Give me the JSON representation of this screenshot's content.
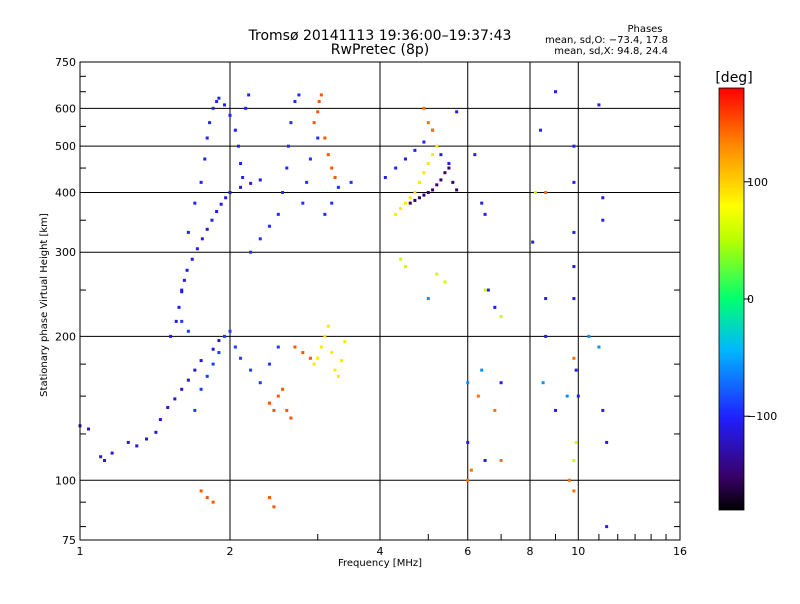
{
  "chart_data": {
    "type": "scatter",
    "title": "Tromsø 20141113 19:36:00–19:37:43",
    "subtitle": "RwPretec (8p)",
    "xlabel": "Frequency [MHz]",
    "ylabel": "Stationary phase Virtual Height [km]",
    "x_scale": "log",
    "y_scale": "log",
    "xlim": [
      1,
      16
    ],
    "ylim": [
      75,
      750
    ],
    "x_ticks": [
      "1",
      "2",
      "4",
      "6",
      "8",
      "10",
      "16"
    ],
    "x_tick_values": [
      1,
      2,
      4,
      6,
      8,
      10,
      16
    ],
    "y_ticks": [
      "75",
      "100",
      "200",
      "300",
      "400",
      "500",
      "600",
      "750"
    ],
    "y_tick_values": [
      75,
      100,
      200,
      300,
      400,
      500,
      600,
      750
    ],
    "grid": true,
    "phase_stats": {
      "heading": "Phases",
      "o_line": "mean, sd,O: −73.4, 17.8",
      "x_line": "mean, sd,X:  94.8, 24.4"
    },
    "colorbar": {
      "unit": "[deg]",
      "ticks": [
        "100",
        "0",
        "−100"
      ],
      "tick_values": [
        100,
        0,
        -100
      ],
      "range": [
        -180,
        180
      ],
      "colormap": "rainbow"
    },
    "clusters": [
      {
        "phase": -115,
        "points": [
          [
            1.0,
            130
          ],
          [
            1.04,
            128
          ],
          [
            1.1,
            112
          ],
          [
            1.12,
            110
          ],
          [
            1.16,
            114
          ],
          [
            1.25,
            120
          ],
          [
            1.3,
            118
          ],
          [
            1.36,
            122
          ],
          [
            1.42,
            126
          ],
          [
            1.45,
            134
          ],
          [
            1.5,
            142
          ],
          [
            1.55,
            148
          ],
          [
            1.6,
            155
          ],
          [
            1.65,
            162
          ],
          [
            1.7,
            170
          ],
          [
            1.75,
            178
          ],
          [
            1.85,
            188
          ],
          [
            1.9,
            196
          ]
        ]
      },
      {
        "phase": -110,
        "points": [
          [
            1.52,
            200
          ],
          [
            1.56,
            215
          ],
          [
            1.58,
            230
          ],
          [
            1.6,
            248
          ],
          [
            1.62,
            262
          ],
          [
            1.64,
            275
          ],
          [
            1.68,
            290
          ],
          [
            1.72,
            305
          ],
          [
            1.76,
            320
          ],
          [
            1.8,
            335
          ],
          [
            1.84,
            350
          ],
          [
            1.88,
            365
          ],
          [
            1.92,
            378
          ],
          [
            1.96,
            390
          ],
          [
            2.0,
            400
          ],
          [
            2.1,
            410
          ],
          [
            2.2,
            418
          ],
          [
            2.3,
            425
          ]
        ]
      },
      {
        "phase": -100,
        "points": [
          [
            1.6,
            250
          ],
          [
            1.65,
            330
          ],
          [
            1.7,
            380
          ],
          [
            1.75,
            420
          ],
          [
            1.78,
            470
          ],
          [
            1.8,
            520
          ],
          [
            1.82,
            560
          ],
          [
            1.85,
            600
          ],
          [
            1.88,
            620
          ],
          [
            1.9,
            630
          ],
          [
            1.95,
            610
          ],
          [
            2.0,
            580
          ],
          [
            2.05,
            540
          ],
          [
            2.08,
            500
          ],
          [
            2.1,
            460
          ],
          [
            2.12,
            430
          ],
          [
            2.15,
            600
          ],
          [
            2.18,
            640
          ]
        ]
      },
      {
        "phase": -95,
        "points": [
          [
            2.2,
            300
          ],
          [
            2.3,
            320
          ],
          [
            2.4,
            340
          ],
          [
            2.5,
            360
          ],
          [
            2.55,
            400
          ],
          [
            2.6,
            450
          ],
          [
            2.62,
            500
          ],
          [
            2.65,
            560
          ],
          [
            2.7,
            620
          ],
          [
            2.75,
            640
          ],
          [
            2.8,
            380
          ],
          [
            2.85,
            420
          ],
          [
            2.9,
            470
          ],
          [
            3.0,
            520
          ],
          [
            3.1,
            360
          ],
          [
            3.2,
            380
          ],
          [
            3.3,
            410
          ],
          [
            3.5,
            420
          ]
        ]
      },
      {
        "phase": -90,
        "points": [
          [
            1.7,
            140
          ],
          [
            1.75,
            155
          ],
          [
            1.8,
            165
          ],
          [
            1.85,
            175
          ],
          [
            1.9,
            185
          ],
          [
            1.95,
            200
          ],
          [
            2.0,
            205
          ],
          [
            2.05,
            190
          ],
          [
            2.1,
            180
          ],
          [
            2.2,
            170
          ],
          [
            2.3,
            160
          ],
          [
            2.4,
            175
          ],
          [
            2.5,
            190
          ],
          [
            1.65,
            205
          ],
          [
            1.6,
            215
          ]
        ]
      },
      {
        "phase": 150,
        "points": [
          [
            2.95,
            560
          ],
          [
            3.0,
            590
          ],
          [
            3.02,
            620
          ],
          [
            3.05,
            640
          ],
          [
            3.1,
            520
          ],
          [
            3.15,
            480
          ],
          [
            3.2,
            450
          ],
          [
            3.25,
            430
          ],
          [
            2.4,
            145
          ],
          [
            2.45,
            140
          ],
          [
            2.5,
            150
          ],
          [
            2.55,
            155
          ],
          [
            2.6,
            140
          ],
          [
            2.65,
            135
          ],
          [
            1.75,
            95
          ],
          [
            1.8,
            92
          ],
          [
            1.85,
            90
          ],
          [
            2.4,
            92
          ],
          [
            2.45,
            88
          ],
          [
            2.7,
            190
          ],
          [
            2.8,
            185
          ],
          [
            2.9,
            180
          ]
        ]
      },
      {
        "phase": 90,
        "points": [
          [
            2.95,
            175
          ],
          [
            3.0,
            180
          ],
          [
            3.05,
            190
          ],
          [
            3.1,
            200
          ],
          [
            3.15,
            210
          ],
          [
            3.2,
            185
          ],
          [
            3.25,
            170
          ],
          [
            3.3,
            165
          ],
          [
            3.35,
            178
          ],
          [
            3.4,
            195
          ],
          [
            4.3,
            360
          ],
          [
            4.4,
            370
          ],
          [
            4.5,
            380
          ],
          [
            4.6,
            390
          ],
          [
            4.7,
            400
          ],
          [
            4.8,
            420
          ],
          [
            4.9,
            440
          ],
          [
            5.0,
            460
          ],
          [
            5.1,
            480
          ],
          [
            5.2,
            500
          ]
        ]
      },
      {
        "phase": -150,
        "points": [
          [
            4.6,
            380
          ],
          [
            4.7,
            385
          ],
          [
            4.8,
            390
          ],
          [
            4.9,
            395
          ],
          [
            5.0,
            400
          ],
          [
            5.1,
            405
          ],
          [
            5.2,
            415
          ],
          [
            5.3,
            425
          ],
          [
            5.4,
            440
          ],
          [
            5.5,
            450
          ],
          [
            5.6,
            420
          ],
          [
            5.7,
            405
          ]
        ]
      },
      {
        "phase": -105,
        "points": [
          [
            4.1,
            430
          ],
          [
            4.3,
            450
          ],
          [
            4.5,
            470
          ],
          [
            4.7,
            490
          ],
          [
            4.9,
            510
          ],
          [
            5.1,
            540
          ],
          [
            5.3,
            480
          ],
          [
            5.5,
            460
          ],
          [
            5.7,
            590
          ],
          [
            6.2,
            480
          ],
          [
            6.4,
            380
          ],
          [
            6.5,
            360
          ],
          [
            6.6,
            250
          ],
          [
            6.8,
            230
          ],
          [
            7.0,
            160
          ],
          [
            8.1,
            315
          ],
          [
            8.4,
            540
          ],
          [
            8.6,
            240
          ],
          [
            9.0,
            650
          ],
          [
            9.8,
            500
          ],
          [
            9.8,
            420
          ],
          [
            9.8,
            330
          ],
          [
            9.8,
            280
          ],
          [
            9.8,
            240
          ],
          [
            9.9,
            170
          ],
          [
            10.0,
            150
          ],
          [
            11.0,
            610
          ],
          [
            11.2,
            390
          ],
          [
            11.2,
            350
          ],
          [
            11.2,
            140
          ],
          [
            11.4,
            120
          ],
          [
            11.4,
            80
          ],
          [
            9.0,
            140
          ],
          [
            8.6,
            200
          ],
          [
            6.0,
            120
          ],
          [
            6.5,
            110
          ]
        ]
      },
      {
        "phase": 140,
        "points": [
          [
            4.9,
            600
          ],
          [
            5.0,
            560
          ],
          [
            5.1,
            540
          ],
          [
            6.0,
            100
          ],
          [
            6.1,
            105
          ],
          [
            7.0,
            110
          ],
          [
            6.8,
            140
          ],
          [
            6.3,
            150
          ],
          [
            9.8,
            180
          ],
          [
            9.8,
            95
          ],
          [
            9.6,
            100
          ],
          [
            8.6,
            400
          ]
        ]
      },
      {
        "phase": 60,
        "points": [
          [
            4.4,
            290
          ],
          [
            4.5,
            280
          ],
          [
            5.2,
            270
          ],
          [
            5.4,
            260
          ],
          [
            6.5,
            250
          ],
          [
            7.0,
            220
          ],
          [
            9.9,
            120
          ],
          [
            9.8,
            110
          ],
          [
            8.2,
            400
          ]
        ]
      },
      {
        "phase": -60,
        "points": [
          [
            5.0,
            240
          ],
          [
            6.0,
            160
          ],
          [
            6.4,
            170
          ],
          [
            8.5,
            160
          ],
          [
            9.5,
            150
          ],
          [
            10.5,
            200
          ],
          [
            11.0,
            190
          ]
        ]
      }
    ]
  }
}
